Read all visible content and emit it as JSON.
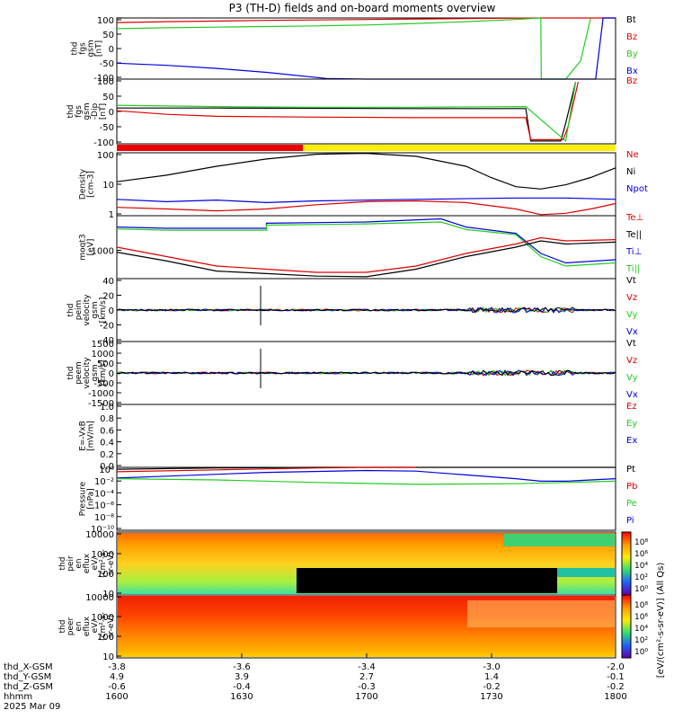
{
  "title": "P3 (TH-D) fields and on-board moments overview",
  "colors": {
    "black": "#000000",
    "red": "#dd0000",
    "green": "#22cc22",
    "blue": "#0000dd",
    "yellow": "#ffee00",
    "bar_red": "#ee0000"
  },
  "chart_data": [
    {
      "type": "line",
      "id": "p1",
      "ylabel": [
        "thd",
        "fgs",
        "gsm",
        "[nT]"
      ],
      "yticks": [
        "100",
        "50",
        "0",
        "-50",
        "-100"
      ],
      "ylim": [
        -100,
        100
      ],
      "legend": [
        {
          "text": "Bt",
          "color": "black"
        },
        {
          "text": "Bz",
          "color": "red"
        },
        {
          "text": "By",
          "color": "green"
        },
        {
          "text": "Bx",
          "color": "blue"
        }
      ],
      "series": [
        {
          "name": "Bt",
          "color": "black",
          "x": [
            0,
            0.01
          ],
          "y": [
            100,
            100
          ]
        },
        {
          "name": "Bz",
          "color": "red",
          "x": [
            0,
            0.1,
            0.3,
            0.5,
            0.7,
            0.85,
            0.9,
            0.97,
            1.0
          ],
          "y": [
            85,
            88,
            92,
            95,
            98,
            100,
            100,
            100,
            100
          ]
        },
        {
          "name": "By",
          "color": "green",
          "x": [
            0,
            0.1,
            0.2,
            0.3,
            0.4,
            0.5,
            0.6,
            0.7,
            0.8,
            0.85,
            0.851,
            0.86,
            0.87,
            0.9,
            0.93,
            0.95
          ],
          "y": [
            65,
            68,
            70,
            72,
            74,
            77,
            82,
            88,
            95,
            100,
            -100,
            -100,
            -100,
            -100,
            -40,
            100
          ]
        },
        {
          "name": "Bx",
          "color": "blue",
          "x": [
            0,
            0.1,
            0.2,
            0.3,
            0.42,
            0.5,
            0.6,
            0.7,
            0.8,
            0.87,
            0.9,
            0.93,
            0.96,
            0.975,
            1.0
          ],
          "y": [
            -48,
            -55,
            -65,
            -78,
            -98,
            -100,
            -100,
            -100,
            -100,
            -100,
            -100,
            -100,
            -100,
            100,
            100
          ]
        }
      ]
    },
    {
      "type": "line",
      "id": "p2",
      "ylabel": [
        "thd",
        "fgs",
        "gsm",
        "-Dip",
        "[nT]"
      ],
      "yticks": [
        "100",
        "50",
        "0",
        "-50",
        "-100"
      ],
      "ylim": [
        -125,
        110
      ],
      "legend": [
        {
          "text": "Bz",
          "color": "red"
        }
      ],
      "series": [
        {
          "name": "Bt",
          "color": "black",
          "x": [
            0,
            0.2,
            0.4,
            0.6,
            0.82,
            0.83,
            0.89,
            0.9,
            0.92
          ],
          "y": [
            5,
            5,
            4,
            3,
            3,
            -115,
            -115,
            -50,
            100
          ]
        },
        {
          "name": "Bz",
          "color": "red",
          "x": [
            0,
            0.1,
            0.2,
            0.4,
            0.6,
            0.82,
            0.83,
            0.895,
            0.905,
            0.925
          ],
          "y": [
            -5,
            -18,
            -25,
            -28,
            -30,
            -30,
            -110,
            -110,
            -60,
            100
          ]
        },
        {
          "name": "By",
          "color": "green",
          "x": [
            0,
            0.2,
            0.4,
            0.6,
            0.82,
            0.9,
            0.92
          ],
          "y": [
            15,
            10,
            8,
            8,
            10,
            -115,
            100
          ]
        }
      ]
    },
    {
      "type": "line",
      "id": "p3",
      "ylabel": [
        "Density",
        "[cm-3]"
      ],
      "ylog": true,
      "ylim_log": [
        -0.5,
        2.1
      ],
      "yticks": [
        "100",
        "10",
        "1"
      ],
      "legend": [
        {
          "text": "Ne",
          "color": "red"
        },
        {
          "text": "Ni",
          "color": "black"
        },
        {
          "text": "Npot",
          "color": "blue"
        }
      ],
      "series": [
        {
          "name": "Ni",
          "color": "black",
          "x": [
            0,
            0.1,
            0.2,
            0.3,
            0.4,
            0.5,
            0.6,
            0.7,
            0.75,
            0.8,
            0.85,
            0.9,
            0.95,
            1.0
          ],
          "y": [
            8,
            15,
            35,
            70,
            110,
            120,
            90,
            35,
            12,
            5,
            4,
            6,
            12,
            30
          ]
        },
        {
          "name": "Ne",
          "color": "red",
          "x": [
            0,
            0.1,
            0.2,
            0.3,
            0.4,
            0.5,
            0.6,
            0.7,
            0.8,
            0.85,
            0.9,
            0.95,
            1.0
          ],
          "y": [
            0.7,
            0.6,
            0.5,
            0.6,
            0.9,
            1.2,
            1.3,
            1.1,
            0.6,
            0.35,
            0.4,
            0.6,
            1.0
          ]
        },
        {
          "name": "Npot",
          "color": "blue",
          "x": [
            0,
            0.1,
            0.2,
            0.3,
            0.4,
            0.6,
            0.8,
            0.9,
            1.0
          ],
          "y": [
            1.5,
            1.2,
            1.4,
            1.1,
            1.3,
            1.5,
            1.7,
            1.7,
            1.5
          ]
        }
      ]
    },
    {
      "type": "line",
      "id": "p4",
      "ylabel": [
        "moqt3",
        "[eV]"
      ],
      "yticks": [
        "1000"
      ],
      "legend": [
        {
          "text": "Te⊥",
          "color": "red"
        },
        {
          "text": "Te||",
          "color": "black"
        },
        {
          "text": "Ti⊥",
          "color": "blue"
        },
        {
          "text": "Ti||",
          "color": "green"
        }
      ],
      "series": [
        {
          "name": "Ti⊥",
          "color": "blue",
          "x": [
            0,
            0.1,
            0.3,
            0.3,
            0.5,
            0.65,
            0.7,
            0.8,
            0.85,
            0.9,
            1.0
          ],
          "y": [
            0.82,
            0.8,
            0.8,
            0.88,
            0.9,
            0.95,
            0.82,
            0.72,
            0.4,
            0.25,
            0.3
          ]
        },
        {
          "name": "Ti||",
          "color": "green",
          "x": [
            0,
            0.1,
            0.3,
            0.3,
            0.5,
            0.65,
            0.7,
            0.8,
            0.85,
            0.9,
            1.0
          ],
          "y": [
            0.79,
            0.77,
            0.77,
            0.85,
            0.87,
            0.9,
            0.78,
            0.7,
            0.35,
            0.2,
            0.25
          ]
        },
        {
          "name": "Te⊥",
          "color": "red",
          "x": [
            0,
            0.1,
            0.2,
            0.3,
            0.4,
            0.5,
            0.6,
            0.7,
            0.8,
            0.85,
            0.9,
            1.0
          ],
          "y": [
            0.5,
            0.35,
            0.2,
            0.15,
            0.1,
            0.1,
            0.2,
            0.4,
            0.55,
            0.65,
            0.6,
            0.62
          ]
        },
        {
          "name": "Te||",
          "color": "black",
          "x": [
            0,
            0.1,
            0.2,
            0.3,
            0.4,
            0.5,
            0.6,
            0.7,
            0.8,
            0.85,
            0.9,
            1.0
          ],
          "y": [
            0.42,
            0.28,
            0.12,
            0.08,
            0.04,
            0.03,
            0.15,
            0.35,
            0.5,
            0.6,
            0.55,
            0.58
          ]
        }
      ]
    },
    {
      "type": "line",
      "id": "p5",
      "ylabel": [
        "thd",
        "peim",
        "velocity",
        "gsm",
        "[km/s]"
      ],
      "yticks": [
        "40",
        "20",
        "0",
        "-20",
        "-40"
      ],
      "ylim": [
        -50,
        50
      ],
      "legend": [
        {
          "text": "Vt",
          "color": "black"
        },
        {
          "text": "Vz",
          "color": "red"
        },
        {
          "text": "Vy",
          "color": "green"
        },
        {
          "text": "Vx",
          "color": "blue"
        }
      ],
      "series": []
    },
    {
      "type": "line",
      "id": "p6",
      "ylabel": [
        "thd",
        "peem",
        "velocity",
        "gsm",
        "[km/s]"
      ],
      "yticks": [
        "1500",
        "1000",
        "500",
        "0",
        "-500",
        "-1000",
        "-1500"
      ],
      "ylim": [
        -1500,
        1500
      ],
      "legend": [
        {
          "text": "Vt",
          "color": "black"
        },
        {
          "text": "Vz",
          "color": "red"
        },
        {
          "text": "Vy",
          "color": "green"
        },
        {
          "text": "Vx",
          "color": "blue"
        }
      ],
      "series": []
    },
    {
      "type": "line",
      "id": "p7",
      "ylabel": [
        "E=-VxB",
        "[mV/m]"
      ],
      "yticks": [
        "1.0",
        "0.8",
        "0.6",
        "0.4",
        "0.2",
        "0.0"
      ],
      "ylim": [
        0,
        1
      ],
      "legend": [
        {
          "text": "Ez",
          "color": "red"
        },
        {
          "text": "Ey",
          "color": "green"
        },
        {
          "text": "Ex",
          "color": "blue"
        }
      ],
      "series": []
    },
    {
      "type": "line",
      "id": "p8",
      "ylabel": [
        "Pressure",
        "[nPa]"
      ],
      "yticks": [
        "10⁰",
        "10⁻²",
        "10⁻⁴",
        "10⁻⁶",
        "10⁻⁸",
        "10⁻¹⁰"
      ],
      "legend": [
        {
          "text": "Pt",
          "color": "black"
        },
        {
          "text": "Pb",
          "color": "red"
        },
        {
          "text": "Pe",
          "color": "green"
        },
        {
          "text": "Pi",
          "color": "blue"
        }
      ],
      "series": [
        {
          "name": "Pt",
          "color": "black",
          "x": [
            0,
            0.2,
            0.4,
            0.6,
            1.0
          ],
          "y": [
            0.97,
            0.99,
            1.0,
            1.0,
            1.0
          ]
        },
        {
          "name": "Pb",
          "color": "red",
          "x": [
            0,
            0.2,
            0.4,
            0.5,
            0.6
          ],
          "y": [
            0.93,
            0.96,
            0.99,
            1.0,
            1.0
          ]
        },
        {
          "name": "Pi",
          "color": "blue",
          "x": [
            0,
            0.1,
            0.3,
            0.5,
            0.6,
            0.7,
            0.8,
            0.85,
            0.9,
            1.0
          ],
          "y": [
            0.83,
            0.86,
            0.92,
            0.95,
            0.94,
            0.88,
            0.82,
            0.78,
            0.78,
            0.82
          ]
        },
        {
          "name": "Pe",
          "color": "green",
          "x": [
            0,
            0.2,
            0.4,
            0.6,
            0.8,
            0.9,
            1.0
          ],
          "y": [
            0.82,
            0.8,
            0.76,
            0.73,
            0.74,
            0.76,
            0.78
          ]
        }
      ]
    },
    {
      "type": "heatmap",
      "id": "p9",
      "ylabel": [
        "thd",
        "peir",
        "en",
        "eflux",
        "eV/",
        "(cm²-s-",
        "sr-eV)"
      ],
      "yticks": [
        "10000",
        "1000",
        "100",
        "10"
      ]
    },
    {
      "type": "heatmap",
      "id": "p10",
      "ylabel": [
        "thd",
        "peer",
        "en",
        "eflux",
        "eV/",
        "(cm²-s-",
        "sr-eV)"
      ],
      "yticks": [
        "10000",
        "1000",
        "100",
        "10"
      ]
    }
  ],
  "colorbar": {
    "label": "[eV/(cm²-s-sr-eV)] (All Qs)",
    "ticks": [
      "10⁸",
      "10⁶",
      "10⁴",
      "10²",
      "10⁰"
    ]
  },
  "x_axis": {
    "ticks": [
      [
        "-3.8",
        "4.9",
        "-0.6",
        "1600"
      ],
      [
        "-3.6",
        "3.9",
        "-0.4",
        "1630"
      ],
      [
        "-3.4",
        "2.7",
        "-0.3",
        "1700"
      ],
      [
        "-3.0",
        "1.4",
        "-0.2",
        "1730"
      ],
      [
        "-2.0",
        "-0.1",
        "-0.2",
        "1800"
      ]
    ],
    "row_labels": [
      "thd_X-GSM",
      "thd_Y-GSM",
      "thd_Z-GSM",
      "hhmm",
      "2025 Mar 09"
    ]
  }
}
